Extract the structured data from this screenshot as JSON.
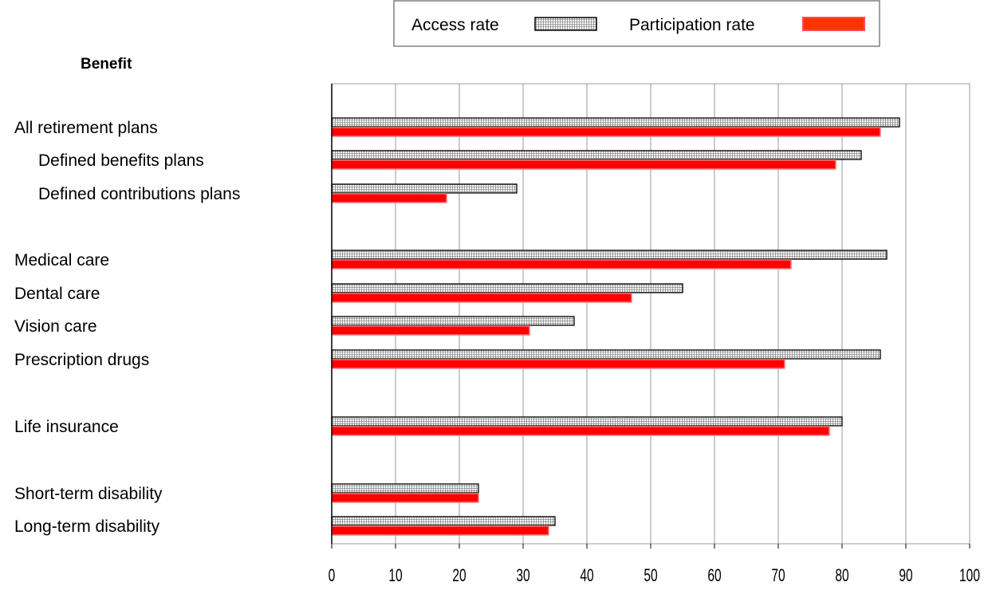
{
  "chart_data": {
    "type": "bar",
    "orientation": "horizontal",
    "heading": "Benefit",
    "categories": [
      "All retirement plans",
      "Defined benefits plans",
      "Defined contributions plans",
      "Medical care",
      "Dental care",
      "Vision care",
      "Prescription drugs",
      "Life insurance",
      "Short-term disability",
      "Long-term disability"
    ],
    "series": [
      {
        "name": "Access rate",
        "values": [
          89,
          83,
          29,
          87,
          55,
          38,
          86,
          80,
          23,
          35
        ],
        "color": "#ffffff",
        "pattern": "crosshatch"
      },
      {
        "name": "Participation rate",
        "values": [
          86,
          79,
          18,
          72,
          47,
          31,
          71,
          78,
          23,
          34
        ],
        "color": "#ff0000"
      }
    ],
    "xlim": [
      0,
      100
    ],
    "xticks": [
      0,
      10,
      20,
      30,
      40,
      50,
      60,
      70,
      80,
      90,
      100
    ],
    "grid": "vertical",
    "legend_position": "top"
  }
}
